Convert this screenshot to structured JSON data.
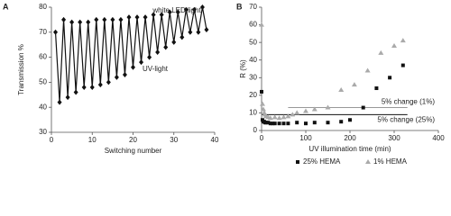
{
  "chart_data": [
    {
      "type": "line",
      "panel_label": "A",
      "xlabel": "Switching number",
      "ylabel": "Transmission %",
      "annotations": [
        "white LED light",
        "UV-light"
      ],
      "x": [
        1,
        2,
        3,
        4,
        5,
        6,
        7,
        8,
        9,
        10,
        11,
        12,
        13,
        14,
        15,
        16,
        17,
        18,
        19,
        20,
        21,
        22,
        23,
        24,
        25,
        26,
        27,
        28,
        29,
        30,
        31,
        32,
        33,
        34,
        35,
        36,
        37,
        38
      ],
      "values": [
        70,
        42,
        75,
        44,
        74,
        46,
        74,
        48,
        74,
        48,
        75,
        49,
        75,
        50,
        75,
        52,
        75,
        53,
        76,
        56,
        76,
        58,
        76,
        60,
        77,
        62,
        77,
        64,
        78,
        66,
        78,
        68,
        79,
        70,
        79,
        70,
        80,
        71
      ],
      "color": "#111",
      "xlim": [
        0,
        40
      ],
      "xticks": [
        0,
        10,
        20,
        30,
        40
      ],
      "ylim": [
        30,
        80
      ],
      "yticks": [
        30,
        40,
        50,
        60,
        70,
        80
      ]
    },
    {
      "type": "scatter",
      "panel_label": "B",
      "xlabel": "UV illumination time (min)",
      "ylabel": "R (%)",
      "legend": "bottom",
      "xlim": [
        0,
        400
      ],
      "xticks": [
        0,
        100,
        200,
        300,
        400
      ],
      "ylim": [
        0,
        70
      ],
      "yticks": [
        0,
        10,
        20,
        30,
        40,
        50,
        60,
        70
      ],
      "series": [
        {
          "name": "25% HEMA",
          "color": "#111",
          "marker": "square",
          "x": [
            0,
            2,
            4,
            6,
            8,
            10,
            15,
            20,
            25,
            30,
            40,
            50,
            60,
            80,
            100,
            120,
            150,
            180,
            200,
            230,
            260,
            290,
            320
          ],
          "values": [
            22,
            6,
            5,
            5,
            4.5,
            4.5,
            4.5,
            4,
            4,
            4,
            4,
            4,
            4,
            4.5,
            4,
            4.5,
            4.5,
            5,
            6,
            13,
            24,
            30,
            37
          ]
        },
        {
          "name": "1% HEMA",
          "color": "#aaa",
          "marker": "triangle",
          "x": [
            0,
            2,
            4,
            6,
            8,
            10,
            15,
            20,
            30,
            40,
            50,
            60,
            70,
            80,
            100,
            120,
            150,
            180,
            210,
            240,
            270,
            300,
            320
          ],
          "values": [
            60,
            15,
            12,
            10,
            9,
            8,
            7.5,
            7,
            7.5,
            7,
            7.5,
            8,
            9,
            10,
            11,
            12,
            13,
            23,
            26,
            34,
            44,
            48,
            51
          ]
        }
      ],
      "threshold_lines": [
        {
          "label": "5% change (1%)",
          "value": 13,
          "xrange": [
            60,
            330
          ],
          "color": "#999"
        },
        {
          "label": "5% change (25%)",
          "value": 9,
          "xrange": [
            0,
            330
          ],
          "color": "#111"
        }
      ]
    }
  ]
}
